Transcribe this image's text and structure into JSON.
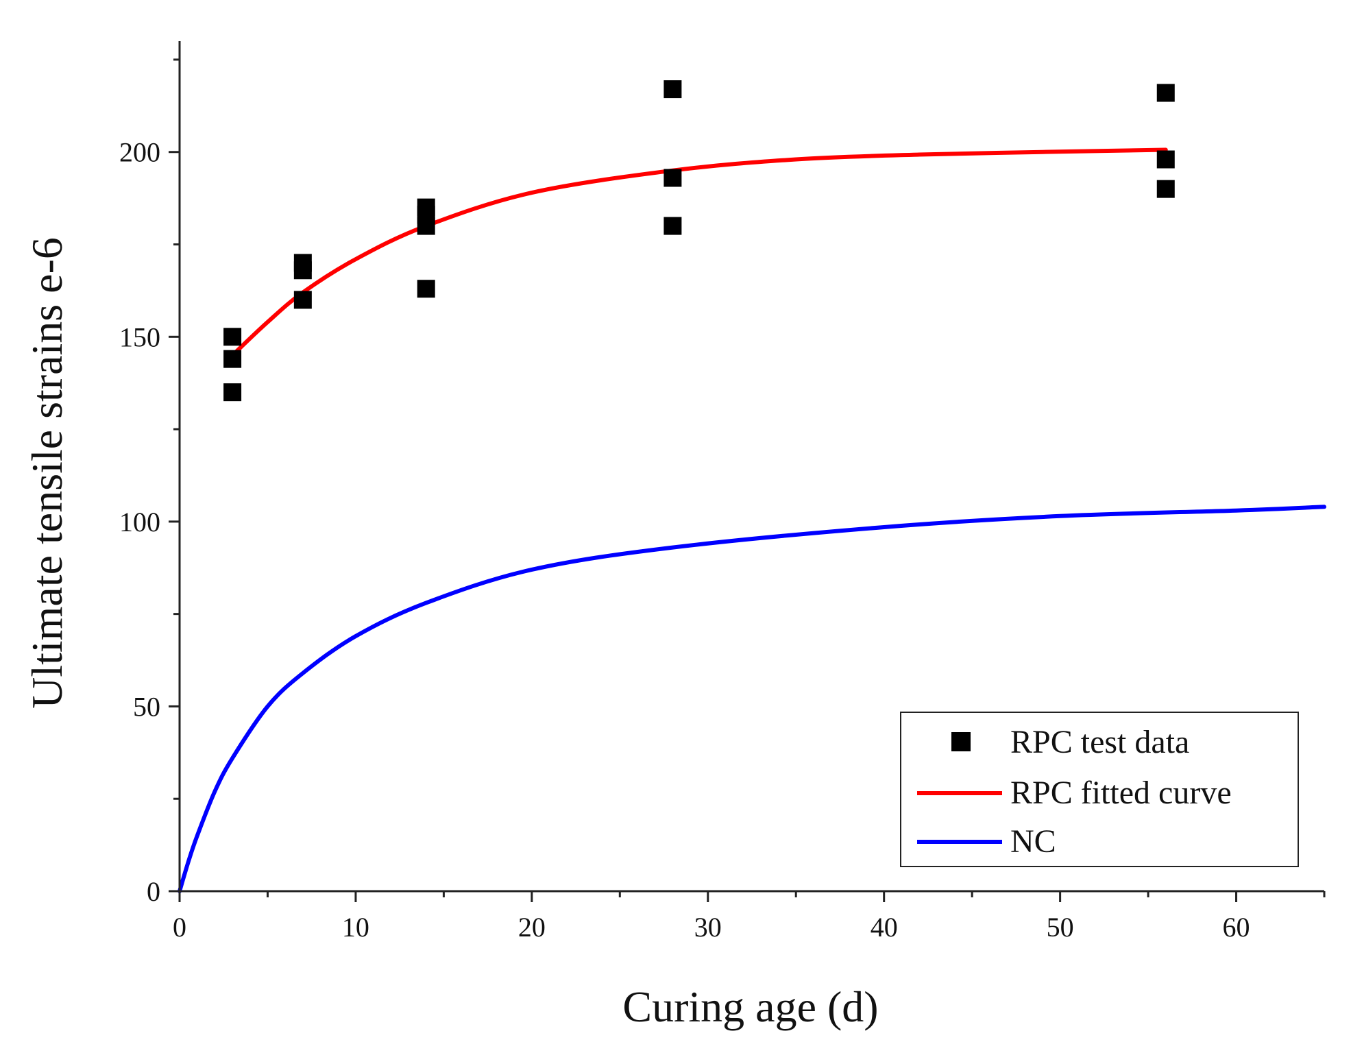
{
  "chart_data": {
    "type": "scatter",
    "title": "",
    "xlabel": "Curing age (d)",
    "ylabel": "Ultimate tensile strains  e-6",
    "xlim": [
      0,
      65
    ],
    "ylim": [
      0,
      230
    ],
    "xticks": [
      0,
      10,
      20,
      30,
      40,
      50,
      60
    ],
    "yticks": [
      0,
      50,
      100,
      150,
      200
    ],
    "x_minor_step": 5,
    "y_minor_step": 25,
    "grid": false,
    "legend_position": "bottom-right",
    "series": [
      {
        "name": "RPC test data",
        "kind": "scatter",
        "marker": "square",
        "color": "#000000",
        "points": [
          {
            "x": 3,
            "y": 150
          },
          {
            "x": 3,
            "y": 144
          },
          {
            "x": 3,
            "y": 135
          },
          {
            "x": 7,
            "y": 170
          },
          {
            "x": 7,
            "y": 168
          },
          {
            "x": 7,
            "y": 160
          },
          {
            "x": 14,
            "y": 185
          },
          {
            "x": 14,
            "y": 183
          },
          {
            "x": 14,
            "y": 180
          },
          {
            "x": 14,
            "y": 163
          },
          {
            "x": 28,
            "y": 217
          },
          {
            "x": 28,
            "y": 193
          },
          {
            "x": 28,
            "y": 180
          },
          {
            "x": 56,
            "y": 216
          },
          {
            "x": 56,
            "y": 198
          },
          {
            "x": 56,
            "y": 190
          }
        ]
      },
      {
        "name": "RPC fitted curve",
        "kind": "line",
        "color": "#ff0000",
        "x": [
          3,
          5,
          7,
          10,
          14,
          20,
          28,
          35,
          42,
          49,
          56
        ],
        "y": [
          145,
          154,
          162,
          171,
          180,
          189,
          195,
          198,
          199.3,
          200,
          200.6
        ]
      },
      {
        "name": "NC",
        "kind": "line",
        "color": "#0000ff",
        "x": [
          0,
          0.5,
          1,
          2,
          3,
          5,
          7,
          10,
          14,
          20,
          28,
          40,
          50,
          60,
          65
        ],
        "y": [
          0,
          8,
          15,
          27,
          36,
          50,
          59,
          69,
          78,
          87,
          93,
          98.5,
          101.5,
          103,
          104
        ]
      }
    ]
  }
}
